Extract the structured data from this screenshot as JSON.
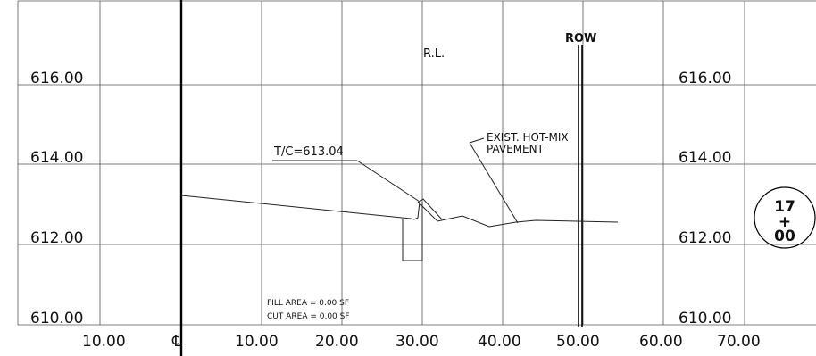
{
  "elevation_labels_left": [
    "616.00",
    "614.00",
    "612.00",
    "610.00"
  ],
  "elevation_labels_right": [
    "616.00",
    "614.00",
    "612.00",
    "610.00"
  ],
  "station_labels": [
    "10.00",
    "℄",
    "10.00",
    "20.00",
    "30.00",
    "40.00",
    "50.00",
    "60.00",
    "70.00"
  ],
  "annotations": {
    "rl": "R.L.",
    "row": "ROW",
    "top_of_curb": "T/C=613.04",
    "pavement_line1": "EXIST. HOT-MIX",
    "pavement_line2": "PAVEMENT"
  },
  "areas": {
    "fill": "FILL AREA = 0.00 SF",
    "cut": "CUT AREA = 0.00 SF"
  },
  "station_badge": {
    "top": "17",
    "mid": "+",
    "bottom": "00"
  }
}
